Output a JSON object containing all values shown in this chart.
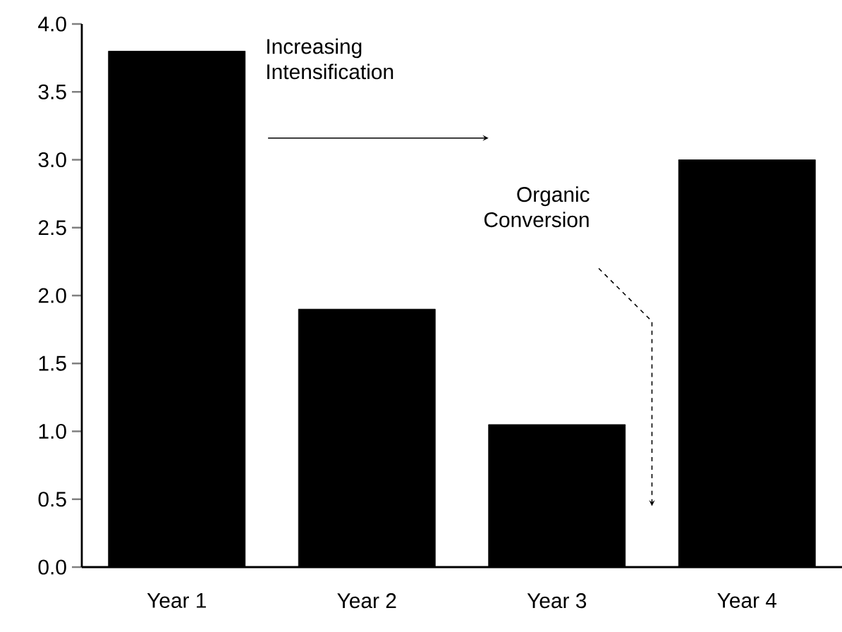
{
  "chart_data": {
    "type": "bar",
    "categories": [
      "Year 1",
      "Year 2",
      "Year 3",
      "Year 4"
    ],
    "values": [
      3.8,
      1.9,
      1.05,
      3.0
    ],
    "color": "#000000",
    "ylim": [
      0,
      4
    ],
    "yticks": [
      {
        "value": 0,
        "label": "0.0"
      },
      {
        "value": 0.5,
        "label": "0.5"
      },
      {
        "value": 1,
        "label": "1.0"
      },
      {
        "value": 1.5,
        "label": "1.5"
      },
      {
        "value": 2,
        "label": "2.0"
      },
      {
        "value": 2.5,
        "label": "2.5"
      },
      {
        "value": 3,
        "label": "3.0"
      },
      {
        "value": 3.5,
        "label": "3.5"
      },
      {
        "value": 4,
        "label": "4.0"
      }
    ],
    "annotations": [
      "Increasing Intensification",
      "Organic Conversion"
    ]
  }
}
